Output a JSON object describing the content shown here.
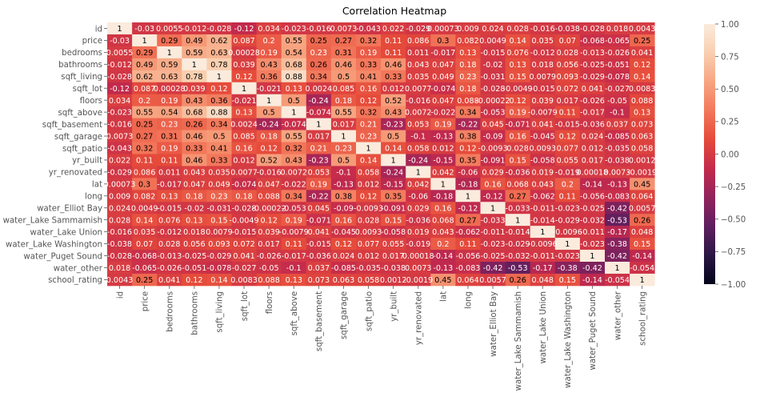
{
  "chart_data": {
    "type": "heatmap",
    "title": "Correlation Heatmap",
    "labels": [
      "id",
      "price",
      "bedrooms",
      "bathrooms",
      "sqft_living",
      "sqft_lot",
      "floors",
      "sqft_above",
      "sqft_basement",
      "sqft_garage",
      "sqft_patio",
      "yr_built",
      "yr_renovated",
      "lat",
      "long",
      "water_Elliot Bay",
      "water_Lake Sammamish",
      "water_Lake Union",
      "water_Lake Washington",
      "water_Puget Sound",
      "water_other",
      "school_rating"
    ],
    "annotations": [
      [
        "1",
        "-0.03",
        "0.0055",
        "-0.012",
        "-0.028",
        "-0.12",
        "0.034",
        "-0.023",
        "-0.016",
        "0.0073",
        "-0.043",
        "0.022",
        "-0.029",
        "0.00073",
        "0.009",
        "0.024",
        "0.028",
        "-0.016",
        "-0.038",
        "-0.028",
        "0.018",
        "0.0043"
      ],
      [
        "-0.03",
        "1",
        "0.29",
        "0.49",
        "0.62",
        "0.087",
        "0.2",
        "0.55",
        "0.25",
        "0.27",
        "0.32",
        "0.11",
        "0.086",
        "0.3",
        "0.082",
        "0.0049",
        "0.14",
        "0.035",
        "0.07",
        "-0.068",
        "-0.065",
        "0.25"
      ],
      [
        "0.0055",
        "0.29",
        "1",
        "0.59",
        "0.63",
        "0.00028",
        "0.19",
        "0.54",
        "0.23",
        "0.31",
        "0.19",
        "0.11",
        "0.011",
        "-0.017",
        "0.13",
        "-0.015",
        "0.076",
        "-0.012",
        "0.028",
        "-0.013",
        "-0.026",
        "0.041"
      ],
      [
        "-0.012",
        "0.49",
        "0.59",
        "1",
        "0.78",
        "0.039",
        "0.43",
        "0.68",
        "0.26",
        "0.46",
        "0.33",
        "0.46",
        "0.043",
        "0.047",
        "0.18",
        "-0.02",
        "0.13",
        "0.018",
        "0.056",
        "-0.025",
        "-0.051",
        "0.12"
      ],
      [
        "-0.028",
        "0.62",
        "0.63",
        "0.78",
        "1",
        "0.12",
        "0.36",
        "0.88",
        "0.34",
        "0.5",
        "0.41",
        "0.33",
        "0.035",
        "0.049",
        "0.23",
        "-0.031",
        "0.15",
        "0.0079",
        "0.093",
        "-0.029",
        "-0.078",
        "0.14"
      ],
      [
        "-0.12",
        "0.087",
        "0.00028",
        "0.039",
        "0.12",
        "1",
        "-0.021",
        "0.13",
        "0.0024",
        "0.085",
        "0.16",
        "0.012",
        "0.0077",
        "-0.074",
        "0.18",
        "-0.028",
        "-0.0049",
        "-0.015",
        "0.072",
        "0.041",
        "-0.027",
        "0.0083"
      ],
      [
        "0.034",
        "0.2",
        "0.19",
        "0.43",
        "0.36",
        "-0.021",
        "1",
        "0.5",
        "-0.24",
        "0.18",
        "0.12",
        "0.52",
        "-0.016",
        "0.047",
        "0.088",
        "-0.00022",
        "0.12",
        "0.039",
        "0.017",
        "-0.026",
        "-0.05",
        "0.088"
      ],
      [
        "-0.023",
        "0.55",
        "0.54",
        "0.68",
        "0.88",
        "0.13",
        "0.5",
        "1",
        "-0.074",
        "0.55",
        "0.32",
        "0.43",
        "0.0072",
        "-0.022",
        "0.34",
        "-0.053",
        "0.19",
        "-0.0079",
        "0.11",
        "-0.017",
        "-0.1",
        "0.13"
      ],
      [
        "-0.016",
        "0.25",
        "0.23",
        "0.26",
        "0.34",
        "0.0024",
        "-0.24",
        "-0.074",
        "1",
        "0.017",
        "0.21",
        "-0.23",
        "0.053",
        "0.19",
        "-0.22",
        "0.045",
        "-0.071",
        "0.041",
        "-0.015",
        "-0.036",
        "0.037",
        "0.073"
      ],
      [
        "0.0073",
        "0.27",
        "0.31",
        "0.46",
        "0.5",
        "0.085",
        "0.18",
        "0.55",
        "0.017",
        "1",
        "0.23",
        "0.5",
        "-0.1",
        "-0.13",
        "0.38",
        "-0.09",
        "0.16",
        "-0.045",
        "0.12",
        "0.024",
        "-0.085",
        "0.063"
      ],
      [
        "-0.043",
        "0.32",
        "0.19",
        "0.33",
        "0.41",
        "0.16",
        "0.12",
        "0.32",
        "0.21",
        "0.23",
        "1",
        "0.14",
        "0.058",
        "0.012",
        "0.12",
        "-0.0093",
        "0.028",
        "0.0093",
        "0.077",
        "0.012",
        "-0.035",
        "0.058"
      ],
      [
        "0.022",
        "0.11",
        "0.11",
        "0.46",
        "0.33",
        "0.012",
        "0.52",
        "0.43",
        "-0.23",
        "0.5",
        "0.14",
        "1",
        "-0.24",
        "-0.15",
        "0.35",
        "-0.091",
        "0.15",
        "-0.058",
        "0.055",
        "0.017",
        "-0.038",
        "0.0012"
      ],
      [
        "-0.029",
        "0.086",
        "0.011",
        "0.043",
        "0.035",
        "0.0077",
        "-0.016",
        "0.0072",
        "0.053",
        "-0.1",
        "0.058",
        "-0.24",
        "1",
        "0.042",
        "-0.06",
        "0.029",
        "-0.036",
        "0.019",
        "-0.019",
        "0.00018",
        "0.0073",
        "-0.0019"
      ],
      [
        "0.00073",
        "0.3",
        "-0.017",
        "0.047",
        "0.049",
        "-0.074",
        "0.047",
        "-0.022",
        "0.19",
        "-0.13",
        "0.012",
        "-0.15",
        "0.042",
        "1",
        "-0.18",
        "0.16",
        "0.068",
        "0.043",
        "0.2",
        "-0.14",
        "-0.13",
        "0.45"
      ],
      [
        "0.009",
        "0.082",
        "0.13",
        "0.18",
        "0.23",
        "0.18",
        "0.088",
        "0.34",
        "-0.22",
        "0.38",
        "0.12",
        "0.35",
        "-0.06",
        "-0.18",
        "1",
        "-0.12",
        "0.27",
        "-0.062",
        "0.11",
        "-0.056",
        "-0.083",
        "0.064"
      ],
      [
        "0.024",
        "0.0049",
        "-0.015",
        "-0.02",
        "-0.031",
        "-0.028",
        "-0.00022",
        "-0.053",
        "0.045",
        "-0.09",
        "-0.0093",
        "-0.091",
        "0.029",
        "0.16",
        "-0.12",
        "1",
        "-0.033",
        "-0.011",
        "-0.023",
        "-0.025",
        "-0.42",
        "0.0057"
      ],
      [
        "0.028",
        "0.14",
        "0.076",
        "0.13",
        "0.15",
        "-0.0049",
        "0.12",
        "0.19",
        "-0.071",
        "0.16",
        "0.028",
        "0.15",
        "-0.036",
        "0.068",
        "0.27",
        "-0.033",
        "1",
        "-0.014",
        "-0.029",
        "-0.032",
        "-0.53",
        "0.26"
      ],
      [
        "-0.016",
        "0.035",
        "-0.012",
        "0.018",
        "0.0079",
        "-0.015",
        "0.039",
        "-0.0079",
        "0.041",
        "-0.045",
        "0.0093",
        "-0.058",
        "0.019",
        "0.043",
        "-0.062",
        "-0.011",
        "-0.014",
        "1",
        "-0.0096",
        "-0.011",
        "-0.17",
        "0.048"
      ],
      [
        "-0.038",
        "0.07",
        "0.028",
        "0.056",
        "0.093",
        "0.072",
        "0.017",
        "0.11",
        "-0.015",
        "0.12",
        "0.077",
        "0.055",
        "-0.019",
        "0.2",
        "0.11",
        "-0.023",
        "-0.029",
        "-0.0096",
        "1",
        "-0.023",
        "-0.38",
        "0.15"
      ],
      [
        "-0.028",
        "-0.068",
        "-0.013",
        "-0.025",
        "-0.029",
        "0.041",
        "-0.026",
        "-0.017",
        "-0.036",
        "0.024",
        "0.012",
        "0.017",
        "0.00018",
        "-0.14",
        "-0.056",
        "-0.025",
        "-0.032",
        "-0.011",
        "-0.023",
        "1",
        "-0.42",
        "-0.14"
      ],
      [
        "0.018",
        "-0.065",
        "-0.026",
        "-0.051",
        "-0.078",
        "-0.027",
        "-0.05",
        "-0.1",
        "0.037",
        "-0.085",
        "-0.035",
        "-0.038",
        "0.0073",
        "-0.13",
        "-0.083",
        "-0.42",
        "-0.53",
        "-0.17",
        "-0.38",
        "-0.42",
        "1",
        "-0.054"
      ],
      [
        "0.0043",
        "0.25",
        "0.041",
        "0.12",
        "0.14",
        "0.0083",
        "0.088",
        "0.13",
        "0.073",
        "0.063",
        "0.058",
        "0.0012",
        "-0.0019",
        "0.45",
        "0.064",
        "0.0057",
        "0.26",
        "0.048",
        "0.15",
        "-0.14",
        "-0.054",
        "1"
      ]
    ],
    "vmin": -1.0,
    "vmax": 1.0,
    "colorbar_ticks": [
      "1.00",
      "0.75",
      "0.50",
      "0.25",
      "0.00",
      "−0.25",
      "−0.50",
      "−0.75",
      "−1.00"
    ],
    "colormap": "rocket",
    "colormap_stops": [
      "#03051a",
      "#2b1745",
      "#5e1f5e",
      "#92235d",
      "#c42a4c",
      "#e54a3a",
      "#f3785b",
      "#f7a582",
      "#f9cfb0",
      "#faebdd"
    ]
  }
}
